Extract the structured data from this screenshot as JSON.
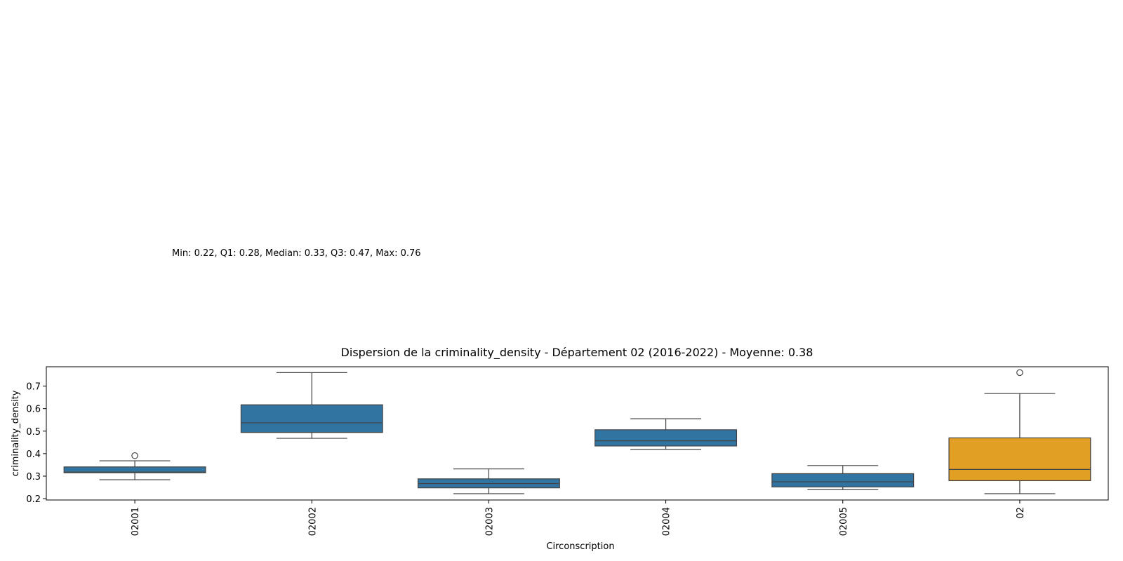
{
  "annotation": {
    "stats_text": "Min: 0.22, Q1: 0.28, Median: 0.33, Q3: 0.47, Max: 0.76"
  },
  "chart_data": {
    "type": "boxplot",
    "title": "Dispersion de la criminality_density - Département 02 (2016-2022) - Moyenne: 0.38",
    "xlabel": "Circonscription",
    "ylabel": "criminality_density",
    "ylim": [
      0.194,
      0.786
    ],
    "yticks": [
      0.2,
      0.3,
      0.4,
      0.5,
      0.6,
      0.7
    ],
    "ytick_labels": [
      "0.2",
      "0.3",
      "0.4",
      "0.5",
      "0.6",
      "0.7"
    ],
    "grid": false,
    "colors": {
      "default": "#3274a1",
      "highlight": "#e1a024",
      "line": "#444444"
    },
    "categories": [
      "02001",
      "02002",
      "02003",
      "02004",
      "02005",
      "02"
    ],
    "boxes": [
      {
        "category": "02001",
        "whisker_low": 0.284,
        "q1": 0.315,
        "median": 0.318,
        "q3": 0.341,
        "whisker_high": 0.368,
        "outliers": [
          0.391
        ],
        "highlight": false
      },
      {
        "category": "02002",
        "whisker_low": 0.468,
        "q1": 0.494,
        "median": 0.537,
        "q3": 0.617,
        "whisker_high": 0.76,
        "outliers": [],
        "highlight": false
      },
      {
        "category": "02003",
        "whisker_low": 0.222,
        "q1": 0.248,
        "median": 0.267,
        "q3": 0.288,
        "whisker_high": 0.332,
        "outliers": [],
        "highlight": false
      },
      {
        "category": "02004",
        "whisker_low": 0.419,
        "q1": 0.434,
        "median": 0.457,
        "q3": 0.506,
        "whisker_high": 0.555,
        "outliers": [],
        "highlight": false
      },
      {
        "category": "02005",
        "whisker_low": 0.24,
        "q1": 0.252,
        "median": 0.275,
        "q3": 0.311,
        "whisker_high": 0.347,
        "outliers": [],
        "highlight": false
      },
      {
        "category": "02",
        "whisker_low": 0.222,
        "q1": 0.28,
        "median": 0.33,
        "q3": 0.47,
        "whisker_high": 0.667,
        "outliers": [
          0.76
        ],
        "highlight": true
      }
    ]
  }
}
